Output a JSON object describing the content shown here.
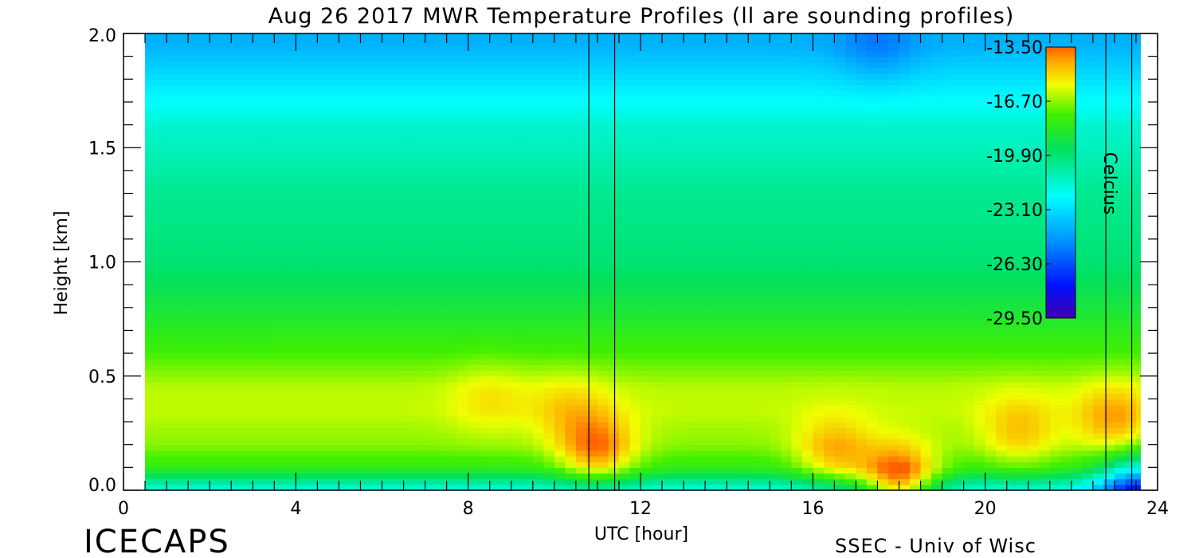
{
  "chart_data": {
    "type": "heatmap",
    "title": "Aug 26 2017 MWR Temperature Profiles (ll are sounding profiles)",
    "xlabel": "UTC [hour]",
    "ylabel": "Height [km]",
    "xlim": [
      0,
      24
    ],
    "ylim": [
      0,
      2
    ],
    "x_ticks": [
      "0",
      "4",
      "8",
      "12",
      "16",
      "20",
      "24"
    ],
    "y_ticks": [
      "0.0",
      "0.5",
      "1.0",
      "1.5",
      "2.0"
    ],
    "data_extent_hours": [
      0.5,
      23.6
    ],
    "sounding_marker_hours": [
      10.8,
      11.4,
      22.8,
      23.4
    ],
    "colorbar": {
      "label": "Celcius",
      "ticks": [
        "-13.50",
        "-16.70",
        "-19.90",
        "-23.10",
        "-26.30",
        "-29.50"
      ],
      "range": [
        -29.5,
        -13.5
      ],
      "placement": "top-right inside plot"
    },
    "temperature_profile_by_height_km": [
      {
        "height": 0.0,
        "temp": -22.0
      },
      {
        "height": 0.05,
        "temp": -20.0
      },
      {
        "height": 0.1,
        "temp": -18.0
      },
      {
        "height": 0.2,
        "temp": -16.8
      },
      {
        "height": 0.35,
        "temp": -16.2
      },
      {
        "height": 0.45,
        "temp": -16.3
      },
      {
        "height": 0.6,
        "temp": -17.5
      },
      {
        "height": 0.8,
        "temp": -18.8
      },
      {
        "height": 1.0,
        "temp": -19.9
      },
      {
        "height": 1.3,
        "temp": -20.4
      },
      {
        "height": 1.6,
        "temp": -21.5
      },
      {
        "height": 1.8,
        "temp": -23.0
      },
      {
        "height": 1.95,
        "temp": -24.2
      }
    ],
    "warm_spots": [
      {
        "hour": 8.5,
        "height": 0.4,
        "temp": -15.3
      },
      {
        "hour": 10.3,
        "height": 0.35,
        "temp": -15.0
      },
      {
        "hour": 11.0,
        "height": 0.17,
        "temp": -14.0
      },
      {
        "hour": 16.5,
        "height": 0.15,
        "temp": -14.8
      },
      {
        "hour": 18.0,
        "height": 0.02,
        "temp": -15.2
      },
      {
        "hour": 20.8,
        "height": 0.25,
        "temp": -14.8
      },
      {
        "hour": 23.0,
        "height": 0.3,
        "temp": -14.2
      }
    ],
    "cold_spots": [
      {
        "hour": 17.5,
        "height": 1.95,
        "temp": -25.5
      },
      {
        "hour": 23.5,
        "height": 0.0,
        "temp": -28.0
      }
    ]
  },
  "branding": {
    "logo_text": "ICECAPS",
    "credit": "SSEC - Univ of Wisc"
  }
}
